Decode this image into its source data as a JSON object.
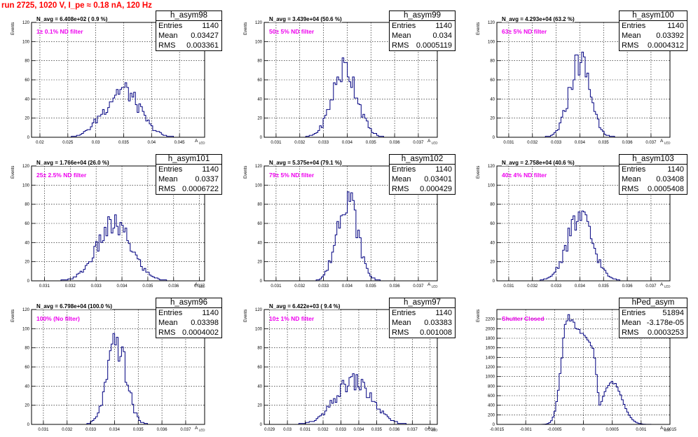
{
  "title": "run 2725,  1020 V, I_pe ≈ 0.18 nA, 120 Hz",
  "axis_y_label": "Events",
  "axis_x_label": "A",
  "axis_x_sub": "LED",
  "stat_labels": {
    "entries": "Entries",
    "mean": "Mean",
    "rms": "RMS"
  },
  "colors": {
    "histogram": "#000080",
    "title": "#ff0000",
    "annotation": "#ee00ee",
    "grid": "#000000"
  },
  "chart_data": [
    {
      "type": "histogram",
      "hist_name": "h_asym98",
      "navg": "N_avg = 6.408e+02 ( 0.9 %)",
      "filter": "1± 0.1% ND filter",
      "entries": "1140",
      "mean": "0.03427",
      "rms": "0.003361",
      "xlim": [
        0.0185,
        0.0495
      ],
      "ylim": [
        0,
        120
      ],
      "yticks": [
        0,
        20,
        40,
        60,
        80,
        100,
        120
      ],
      "xticks": [
        0.02,
        0.025,
        0.03,
        0.035,
        0.04,
        0.045
      ],
      "xtick_labels": [
        "0.02",
        "0.025",
        "0.03",
        "0.035",
        "0.04",
        "0.045"
      ],
      "peak_x": 0.0348,
      "peak_y": 50,
      "width": 0.003,
      "side_x": 0.0325,
      "side_y": 30
    },
    {
      "type": "histogram",
      "hist_name": "h_asym99",
      "navg": "N_avg = 3.439e+04 (50.6 %)",
      "filter": "50± 5% ND filter",
      "entries": "1140",
      "mean": "0.034",
      "rms": "0.0005119",
      "xlim": [
        0.0305,
        0.0378
      ],
      "ylim": [
        0,
        120
      ],
      "yticks": [
        0,
        20,
        40,
        60,
        80,
        100,
        120
      ],
      "xticks": [
        0.031,
        0.032,
        0.033,
        0.034,
        0.035,
        0.036,
        0.037
      ],
      "xtick_labels": [
        "0.031",
        "0.032",
        "0.033",
        "0.034",
        "0.035",
        "0.036",
        "0.037"
      ],
      "peak_x": 0.0339,
      "peak_y": 72,
      "width": 0.00052
    },
    {
      "type": "histogram",
      "hist_name": "h_asym100",
      "navg": "N_avg = 4.293e+04 (63.2 %)",
      "filter": "63± 5% ND filter",
      "entries": "1140",
      "mean": "0.03392",
      "rms": "0.0004312",
      "xlim": [
        0.0305,
        0.0378
      ],
      "ylim": [
        0,
        120
      ],
      "yticks": [
        0,
        20,
        40,
        60,
        80,
        100,
        120
      ],
      "xticks": [
        0.031,
        0.032,
        0.033,
        0.034,
        0.035,
        0.036,
        0.037
      ],
      "xtick_labels": [
        "0.031",
        "0.032",
        "0.033",
        "0.034",
        "0.035",
        "0.036",
        "0.037"
      ],
      "peak_x": 0.034,
      "peak_y": 80,
      "width": 0.00044
    },
    {
      "type": "histogram",
      "hist_name": "h_asym101",
      "navg": "N_avg = 1.766e+04 (26.0 %)",
      "filter": "25± 2.5% ND filter",
      "entries": "1140",
      "mean": "0.0337",
      "rms": "0.0006722",
      "xlim": [
        0.0305,
        0.0372
      ],
      "ylim": [
        0,
        120
      ],
      "yticks": [
        0,
        20,
        40,
        60,
        80,
        100,
        120
      ],
      "xticks": [
        0.031,
        0.032,
        0.033,
        0.034,
        0.035,
        0.036,
        0.037
      ],
      "xtick_labels": [
        "0.031",
        "0.032",
        "0.033",
        "0.034",
        "0.035",
        "0.036",
        "0.037"
      ],
      "peak_x": 0.0337,
      "peak_y": 58,
      "width": 0.00066
    },
    {
      "type": "histogram",
      "hist_name": "h_asym102",
      "navg": "N_avg = 5.375e+04 (79.1 %)",
      "filter": "79± 5% ND filter",
      "entries": "1140",
      "mean": "0.03401",
      "rms": "0.000429",
      "xlim": [
        0.0305,
        0.0378
      ],
      "ylim": [
        0,
        120
      ],
      "yticks": [
        0,
        20,
        40,
        60,
        80,
        100,
        120
      ],
      "xticks": [
        0.031,
        0.032,
        0.033,
        0.034,
        0.035,
        0.036,
        0.037
      ],
      "xtick_labels": [
        "0.031",
        "0.032",
        "0.033",
        "0.034",
        "0.035",
        "0.036",
        "0.037"
      ],
      "peak_x": 0.034,
      "peak_y": 90,
      "width": 0.00042
    },
    {
      "type": "histogram",
      "hist_name": "h_asym103",
      "navg": "N_avg = 2.758e+04 (40.6 %)",
      "filter": "40± 4% ND filter",
      "entries": "1140",
      "mean": "0.03408",
      "rms": "0.0005408",
      "xlim": [
        0.0305,
        0.0378
      ],
      "ylim": [
        0,
        120
      ],
      "yticks": [
        0,
        20,
        40,
        60,
        80,
        100,
        120
      ],
      "xticks": [
        0.031,
        0.032,
        0.033,
        0.034,
        0.035,
        0.036,
        0.037
      ],
      "xtick_labels": [
        "0.031",
        "0.032",
        "0.033",
        "0.034",
        "0.035",
        "0.036",
        "0.037"
      ],
      "peak_x": 0.034,
      "peak_y": 66,
      "width": 0.00054
    },
    {
      "type": "histogram",
      "hist_name": "h_asym96",
      "navg": "N_avg = 6.798e+04 (100.0 %)",
      "filter": "100% (No filter)",
      "entries": "1140",
      "mean": "0.03398",
      "rms": "0.0004002",
      "xlim": [
        0.0305,
        0.0378
      ],
      "ylim": [
        0,
        120
      ],
      "yticks": [
        0,
        20,
        40,
        60,
        80,
        100,
        120
      ],
      "xticks": [
        0.031,
        0.032,
        0.033,
        0.034,
        0.035,
        0.036,
        0.037
      ],
      "xtick_labels": [
        "0.031",
        "0.032",
        "0.033",
        "0.034",
        "0.035",
        "0.036",
        "0.037"
      ],
      "peak_x": 0.0341,
      "peak_y": 84,
      "width": 0.0004
    },
    {
      "type": "histogram",
      "hist_name": "h_asym97",
      "navg": "N_avg = 6.422e+03 ( 9.4 %)",
      "filter": "10± 1% ND filter",
      "entries": "1140",
      "mean": "0.03383",
      "rms": "0.001008",
      "xlim": [
        0.0287,
        0.0384
      ],
      "ylim": [
        0,
        120
      ],
      "yticks": [
        0,
        20,
        40,
        60,
        80,
        100,
        120
      ],
      "xticks": [
        0.029,
        0.03,
        0.031,
        0.032,
        0.033,
        0.034,
        0.035,
        0.036,
        0.037,
        0.038
      ],
      "xtick_labels": [
        "0.029",
        "0.03",
        "0.031",
        "0.032",
        "0.033",
        "0.034",
        "0.035",
        "0.036",
        "0.037",
        "0.038"
      ],
      "peak_x": 0.0337,
      "peak_y": 45,
      "width": 0.001
    },
    {
      "type": "histogram",
      "hist_name": "hPed_asym",
      "navg": "",
      "filter": "Shutter Closed",
      "entries": "51894",
      "mean": "-3.178e-05",
      "rms": "0.0003253",
      "xlim": [
        -0.0015,
        0.0015
      ],
      "ylim": [
        0,
        2400
      ],
      "yticks": [
        0,
        200,
        400,
        600,
        800,
        1000,
        1200,
        1400,
        1600,
        1800,
        2000,
        2200
      ],
      "xticks": [
        -0.0015,
        -0.001,
        -0.0005,
        0,
        0.0005,
        0.001,
        0.0015
      ],
      "xtick_labels": [
        "-0.0015",
        "-0.001",
        "-0.0005",
        "0",
        "0.0005",
        "0.001",
        "0.0015"
      ],
      "bimodal": true,
      "peak_x": -0.00027,
      "peak_y": 2250,
      "width": 0.0002,
      "side_x": 0.0005,
      "side_y": 880
    }
  ]
}
